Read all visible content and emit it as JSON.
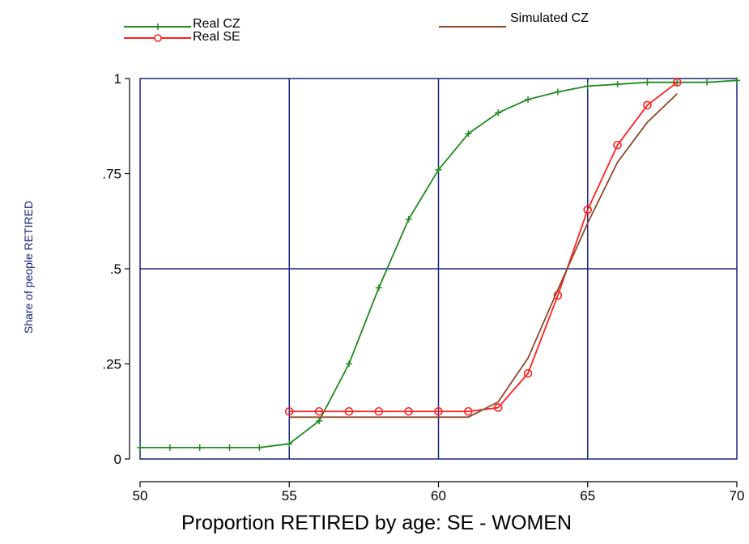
{
  "chart_data": {
    "type": "line",
    "title": "",
    "xlabel": "Proportion RETIRED by age: SE - WOMEN",
    "ylabel": "Share of people RETIRED",
    "xlim": [
      50,
      70
    ],
    "ylim": [
      0,
      1
    ],
    "x_ticks": [
      50,
      55,
      60,
      65,
      70
    ],
    "x_tick_labels": [
      "50",
      "55",
      "60",
      "65",
      "70"
    ],
    "y_ticks": [
      0,
      0.25,
      0.5,
      0.75,
      1
    ],
    "y_tick_labels": [
      "0",
      ".25",
      ".5",
      ".75",
      "1"
    ],
    "grid": true,
    "legend_position": "top",
    "series": [
      {
        "name": "Real CZ",
        "color": "#1f8a1f",
        "marker": "plus",
        "x": [
          50,
          51,
          52,
          53,
          54,
          55,
          56,
          57,
          58,
          59,
          60,
          61,
          62,
          63,
          64,
          65,
          66,
          67,
          68,
          69,
          70
        ],
        "y": [
          0.03,
          0.03,
          0.03,
          0.03,
          0.03,
          0.04,
          0.1,
          0.25,
          0.45,
          0.63,
          0.76,
          0.855,
          0.91,
          0.945,
          0.965,
          0.98,
          0.985,
          0.99,
          0.99,
          0.99,
          0.995
        ]
      },
      {
        "name": "Real SE",
        "color": "#ff2020",
        "marker": "circle",
        "x": [
          55,
          56,
          57,
          58,
          59,
          60,
          61,
          62,
          63,
          64,
          65,
          66,
          67,
          68
        ],
        "y": [
          0.125,
          0.125,
          0.125,
          0.125,
          0.125,
          0.125,
          0.125,
          0.135,
          0.225,
          0.43,
          0.655,
          0.825,
          0.93,
          0.99
        ]
      },
      {
        "name": "Simulated CZ",
        "color": "#8b4a2b",
        "marker": "none",
        "x": [
          55,
          56,
          57,
          58,
          59,
          60,
          61,
          62,
          63,
          64,
          65,
          66,
          67,
          68
        ],
        "y": [
          0.11,
          0.11,
          0.11,
          0.11,
          0.11,
          0.11,
          0.11,
          0.15,
          0.265,
          0.445,
          0.62,
          0.78,
          0.885,
          0.96
        ]
      }
    ]
  }
}
